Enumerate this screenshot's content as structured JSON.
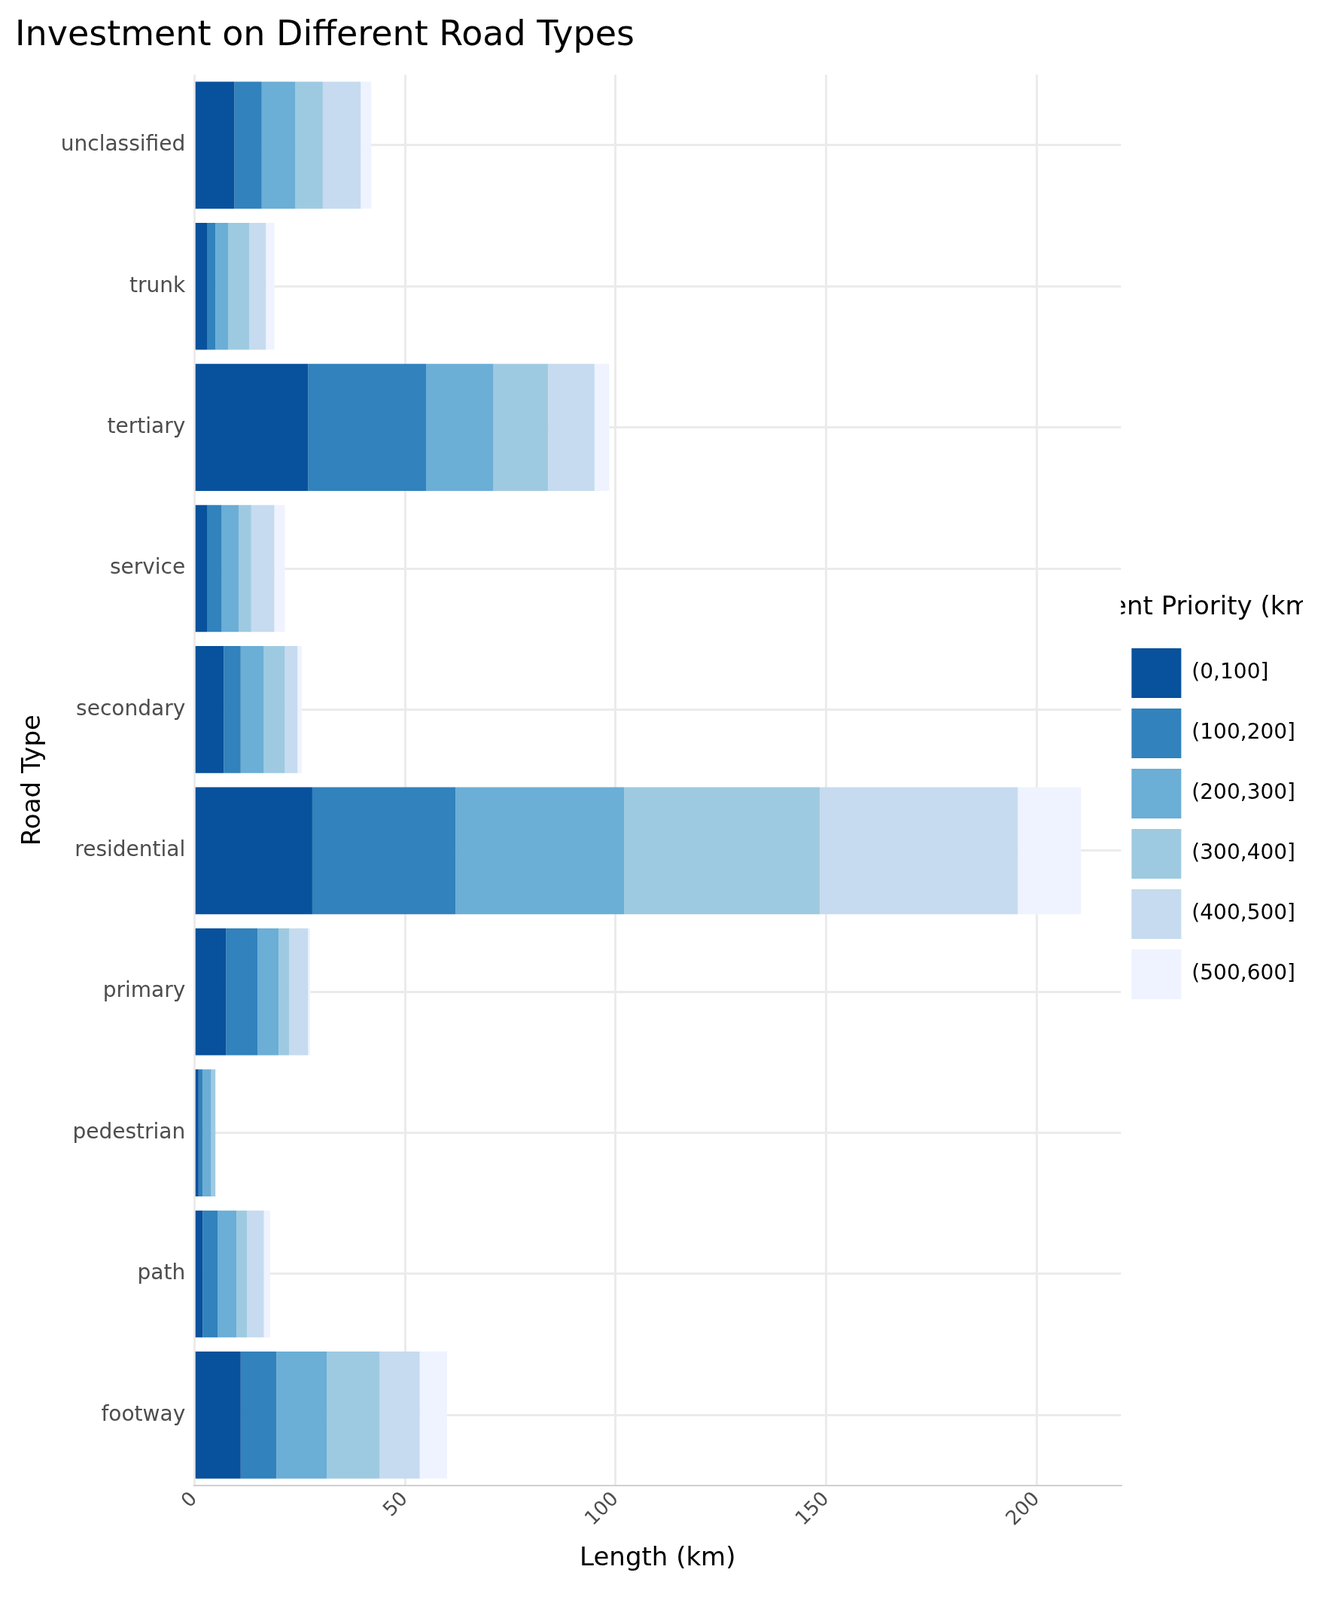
{
  "chart_data": {
    "type": "bar",
    "title": "Investment on Different Road Types",
    "orientation": "horizontal",
    "stacked": true,
    "grid": true,
    "legend": "right",
    "legend_title": "Investment Priority (km groups)",
    "x_label": "Length (km)",
    "y_label": "Road Type",
    "categories": [
      "unclassified",
      "trunk",
      "tertiary",
      "service",
      "secondary",
      "residential",
      "primary",
      "pedestrian",
      "path",
      "footway"
    ],
    "series": [
      {
        "name": "(0,100]",
        "color": "#08519c",
        "values": [
          9.5,
          3,
          27,
          3,
          7,
          28,
          7.5,
          1,
          2,
          11
        ]
      },
      {
        "name": "(100,200]",
        "color": "#3182bd",
        "values": [
          6.5,
          2,
          28,
          3.5,
          4,
          34,
          7.5,
          1,
          3.5,
          8.5
        ]
      },
      {
        "name": "(200,300]",
        "color": "#6baed6",
        "values": [
          8,
          3,
          16,
          4,
          5.5,
          40,
          5,
          2,
          4.5,
          12
        ]
      },
      {
        "name": "(300,400]",
        "color": "#9ecae1",
        "values": [
          6.5,
          5,
          13,
          3,
          5,
          46.5,
          2.5,
          1,
          2.5,
          12.5
        ]
      },
      {
        "name": "(400,500]",
        "color": "#c6dbef",
        "values": [
          9,
          4,
          11,
          5.5,
          3,
          47,
          4.5,
          0,
          4,
          9.5
        ]
      },
      {
        "name": "(500,600]",
        "color": "#eff3ff",
        "values": [
          2.5,
          2,
          3.5,
          2.5,
          1,
          15,
          0.5,
          0,
          1.5,
          6.5
        ]
      }
    ],
    "xlim": [
      0,
      220
    ],
    "xticks": [
      0,
      50,
      100,
      150,
      200
    ]
  }
}
